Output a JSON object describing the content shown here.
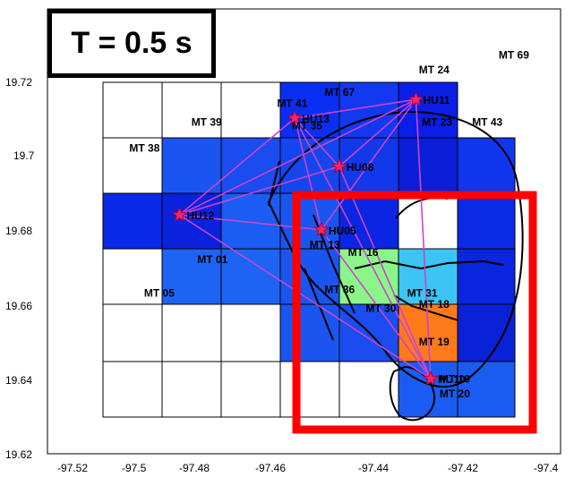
{
  "title": "T = 0.5 s",
  "axes": {
    "x_ticks": [
      "-97.52",
      "-97.5",
      "-97.48",
      "-97.46",
      "-97.44",
      "-97.42",
      "-97.4"
    ],
    "y_ticks": [
      "19.72",
      "19.7",
      "19.68",
      "19.66",
      "19.64",
      "19.62"
    ]
  },
  "stations": [
    {
      "name": "MT 69",
      "lon": -97.397,
      "lat": 19.726
    },
    {
      "name": "MT 24",
      "lon": -97.424,
      "lat": 19.722
    },
    {
      "name": "MT 67",
      "lon": -97.456,
      "lat": 19.716
    },
    {
      "name": "MT 41",
      "lon": -97.472,
      "lat": 19.713
    },
    {
      "name": "MT 39",
      "lon": -97.501,
      "lat": 19.708
    },
    {
      "name": "MT 23",
      "lon": -97.423,
      "lat": 19.708
    },
    {
      "name": "MT 43",
      "lon": -97.406,
      "lat": 19.708
    },
    {
      "name": "MT 35",
      "lon": -97.467,
      "lat": 19.707
    },
    {
      "name": "MT 38",
      "lon": -97.522,
      "lat": 19.701
    },
    {
      "name": "MT 13",
      "lon": -97.461,
      "lat": 19.675
    },
    {
      "name": "MT 16",
      "lon": -97.448,
      "lat": 19.673
    },
    {
      "name": "MT 01",
      "lon": -97.499,
      "lat": 19.671
    },
    {
      "name": "MT 36",
      "lon": -97.456,
      "lat": 19.663
    },
    {
      "name": "MT 05",
      "lon": -97.517,
      "lat": 19.662
    },
    {
      "name": "MT 31",
      "lon": -97.428,
      "lat": 19.662
    },
    {
      "name": "MT 18",
      "lon": -97.424,
      "lat": 19.659
    },
    {
      "name": "MT 30",
      "lon": -97.442,
      "lat": 19.658
    },
    {
      "name": "MT 19",
      "lon": -97.424,
      "lat": 19.649
    },
    {
      "name": "MT 10",
      "lon": -97.417,
      "lat": 19.639
    },
    {
      "name": "MT 20",
      "lon": -97.417,
      "lat": 19.635
    }
  ],
  "hypocenters": [
    {
      "name": "HU11",
      "lon": -97.425,
      "lat": 19.715
    },
    {
      "name": "HU13",
      "lon": -97.466,
      "lat": 19.71
    },
    {
      "name": "HU08",
      "lon": -97.451,
      "lat": 19.697
    },
    {
      "name": "HU12",
      "lon": -97.505,
      "lat": 19.684
    },
    {
      "name": "HU05",
      "lon": -97.457,
      "lat": 19.68
    },
    {
      "name": "HU10",
      "lon": -97.42,
      "lat": 19.64
    }
  ],
  "colors": {
    "grid_line": "#000000",
    "ray_path": "#cc44cc",
    "star": "#ff2266",
    "highlight_box": "#ff0000",
    "caldera_outline": "#000000"
  }
}
